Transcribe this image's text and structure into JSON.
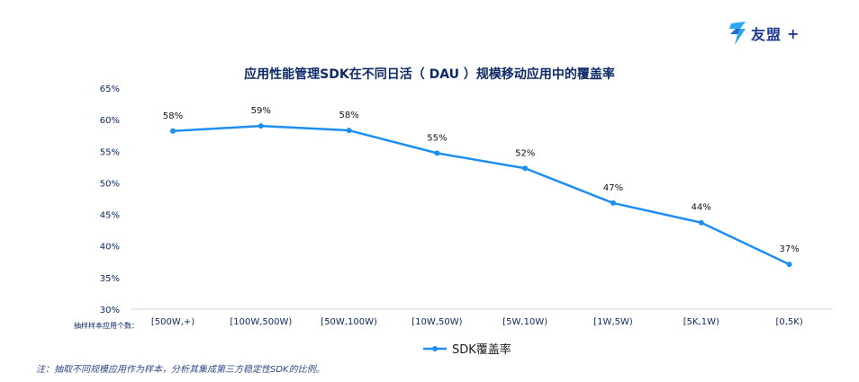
{
  "logo": {
    "text": "友盟",
    "plus": "+",
    "icon": "umeng-logo-icon"
  },
  "chart_data": {
    "type": "line",
    "title": "应用性能管理SDK在不同日活（ DAU ）规模移动应用中的覆盖率",
    "xlabel": "抽样样本应用个数：",
    "ylabel": "",
    "categories": [
      "[500W,+)",
      "[100W,500W)",
      "[50W,100W)",
      "[10W,50W)",
      "[5W,10W)",
      "[1W,5W)",
      "[5K,1W)",
      "[0,5K)"
    ],
    "series": [
      {
        "name": "SDK覆盖率",
        "values": [
          58.2,
          59.0,
          58.3,
          54.7,
          52.3,
          46.8,
          43.7,
          37.1
        ],
        "labels": [
          "58%",
          "59%",
          "58%",
          "55%",
          "52%",
          "47%",
          "44%",
          "37%"
        ]
      }
    ],
    "ylim": [
      30,
      65
    ],
    "yticks": [
      "30%",
      "35%",
      "40%",
      "45%",
      "50%",
      "55%",
      "60%",
      "65%"
    ],
    "ytick_values": [
      30,
      35,
      40,
      45,
      50,
      55,
      60,
      65
    ],
    "grid": false,
    "legend": "bottom-center",
    "color": "#1e8ef0"
  },
  "note": "注：抽取不同规模应用作为样本，分析其集成第三方稳定性SDK的比例。"
}
